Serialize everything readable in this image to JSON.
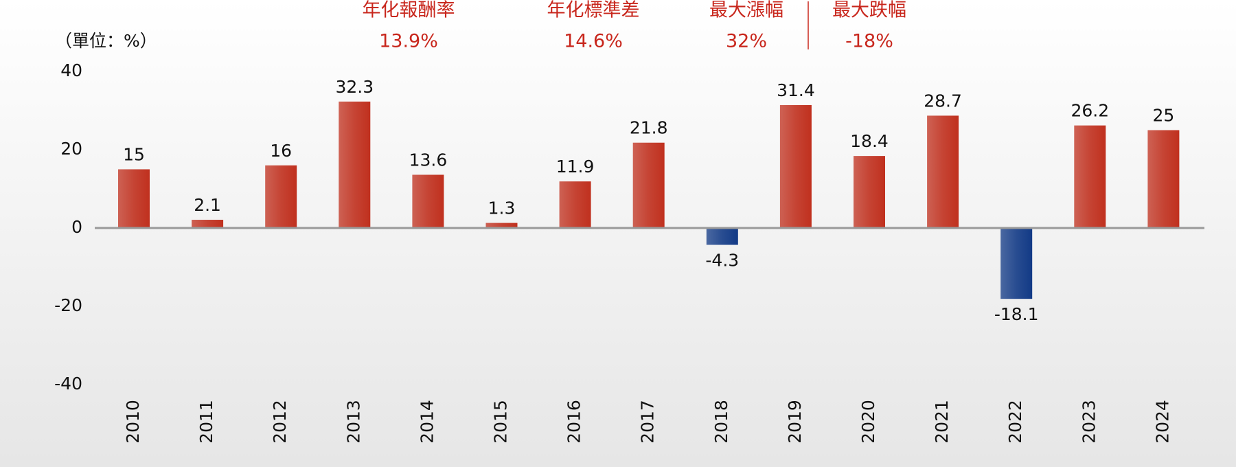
{
  "chart_data": {
    "type": "bar",
    "unit_label": "（單位：%）",
    "stats": [
      {
        "label": "年化報酬率",
        "value": "13.9%"
      },
      {
        "label": "年化標準差",
        "value": "14.6%"
      },
      {
        "label": "最大漲幅",
        "value": "32%"
      },
      {
        "label": "最大跌幅",
        "value": "-18%"
      }
    ],
    "categories": [
      "2010",
      "2011",
      "2012",
      "2013",
      "2014",
      "2015",
      "2016",
      "2017",
      "2018",
      "2019",
      "2020",
      "2021",
      "2022",
      "2023",
      "2024"
    ],
    "values": [
      15,
      2.1,
      16,
      32.3,
      13.6,
      1.3,
      11.9,
      21.8,
      -4.3,
      31.4,
      18.4,
      28.7,
      -18.1,
      26.2,
      25
    ],
    "color": "#c0301e",
    "negative_color": "#123a86",
    "ylim": [
      -40,
      40
    ],
    "yticks": [
      -40,
      -20,
      0,
      20,
      40
    ],
    "grid": false
  }
}
